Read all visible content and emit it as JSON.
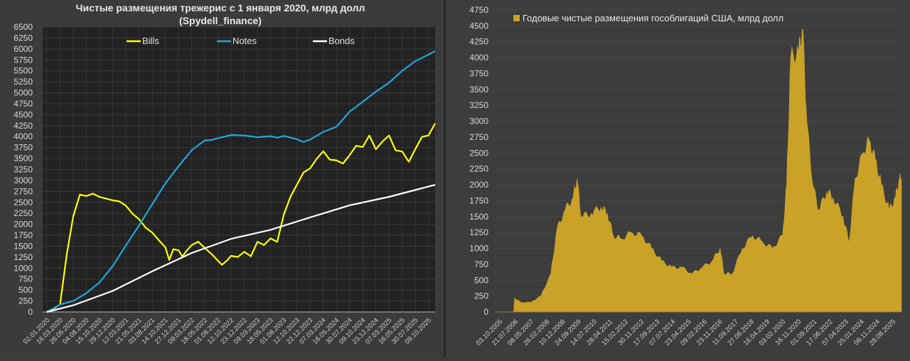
{
  "chart_data": [
    {
      "type": "line",
      "title": "Чистые размещения трежерис с 1 января 2020, млрд долл",
      "subtitle": "(Spydell_finance)",
      "xlabel": "",
      "ylabel": "",
      "ylim": [
        0,
        6500
      ],
      "yticks": [
        0,
        250,
        500,
        750,
        1000,
        1250,
        1500,
        1750,
        2000,
        2250,
        2500,
        2750,
        3000,
        3250,
        3500,
        3750,
        4000,
        4250,
        4500,
        4750,
        5000,
        5250,
        5500,
        5750,
        6000,
        6250,
        6500
      ],
      "categories": [
        "02.01.2020",
        "16.03.2020",
        "26.05.2020",
        "04.08.2020",
        "15.10.2020",
        "29.12.2020",
        "12.03.2021",
        "21.05.2021",
        "03.08.2021",
        "14.10.2021",
        "27.12.2021",
        "09.03.2022",
        "18.05.2022",
        "01.08.2022",
        "12.10.2022",
        "23.12.2022",
        "09.03.2023",
        "18.05.2023",
        "01.08.2023",
        "12.10.2023",
        "22.12.2023",
        "07.03.2024",
        "16.05.2024",
        "30.07.2024",
        "09.10.2024",
        "23.12.2024",
        "07.03.2025",
        "16.05.2025",
        "30.07.2025",
        "09.10.2025"
      ],
      "grid": true,
      "legend": "top",
      "series": [
        {
          "name": "Bills",
          "color": "#ffff00",
          "x": [
            0,
            0.5,
            1,
            1.5,
            2,
            2.5,
            3,
            3.5,
            4,
            5,
            5.5,
            6,
            6.5,
            7,
            7.5,
            8,
            8.5,
            9,
            9.3,
            9.6,
            10,
            10.3,
            10.6,
            11,
            11.5,
            12,
            12.5,
            13,
            13.3,
            13.7,
            14,
            14.5,
            15,
            15.5,
            16,
            16.5,
            17,
            17.5,
            18,
            18.5,
            19,
            19.5,
            20,
            20.5,
            21,
            21.5,
            22,
            22.5,
            23,
            23.5,
            24,
            24.5,
            25,
            25.5,
            26,
            26.5,
            27,
            27.5,
            28,
            28.5,
            29,
            29.5
          ],
          "values": [
            0,
            50,
            150,
            1300,
            2200,
            2700,
            2650,
            2680,
            2600,
            2540,
            2540,
            2450,
            2250,
            2100,
            1900,
            1800,
            1650,
            1500,
            1200,
            1420,
            1380,
            1250,
            1400,
            1550,
            1620,
            1450,
            1300,
            1150,
            1080,
            1200,
            1300,
            1250,
            1350,
            1250,
            1600,
            1550,
            1700,
            1600,
            2200,
            2600,
            2900,
            3200,
            3300,
            3500,
            3650,
            3450,
            3450,
            3400,
            3600,
            3800,
            3750,
            4000,
            3700,
            3900,
            4050,
            3700,
            3650,
            3400,
            3700,
            4000,
            4050,
            4300
          ]
        },
        {
          "name": "Notes",
          "color": "#1fa8e0",
          "x": [
            0,
            1,
            2,
            3,
            4,
            5,
            6,
            7,
            8,
            9,
            10,
            11,
            12,
            12.5,
            13,
            14,
            15,
            16,
            17,
            17.5,
            18,
            19,
            19.5,
            20,
            21,
            22,
            23,
            24,
            25,
            26,
            27,
            28,
            29,
            29.5
          ],
          "values": [
            0,
            150,
            250,
            450,
            700,
            1050,
            1500,
            1950,
            2450,
            2950,
            3350,
            3700,
            3900,
            3900,
            3950,
            4050,
            4050,
            4000,
            4000,
            3950,
            4000,
            3950,
            3900,
            3950,
            4100,
            4200,
            4550,
            4800,
            5050,
            5250,
            5500,
            5700,
            5850,
            5950
          ]
        },
        {
          "name": "Bonds",
          "color": "#ffffff",
          "x": [
            0,
            2,
            5,
            8,
            11,
            14,
            17,
            20,
            23,
            26,
            29.5
          ],
          "values": [
            0,
            150,
            500,
            950,
            1350,
            1650,
            1850,
            2150,
            2450,
            2650,
            2900
          ]
        }
      ]
    },
    {
      "type": "area",
      "title": "",
      "legend_label": "Годовые чистые размещения гособлигаций США, млрд долл",
      "color": "#c9a227",
      "ylim": [
        0,
        4750
      ],
      "yticks": [
        0,
        250,
        500,
        750,
        1000,
        1250,
        1500,
        1750,
        2000,
        2250,
        2500,
        2750,
        3000,
        3250,
        3500,
        3750,
        4000,
        4250,
        4500,
        4750
      ],
      "xrange": [
        2005.75,
        2025.9
      ],
      "xtick_labels": [
        "03.10.2005",
        "21.07.2006",
        "08.05.2007",
        "26.02.2008",
        "10.12.2008",
        "24.09.2009",
        "14.07.2010",
        "28.04.2011",
        "15.02.2012",
        "30.11.2012",
        "17.09.2013",
        "07.07.2014",
        "23.04.2015",
        "09.02.2016",
        "23.11.2016",
        "11.09.2017",
        "27.06.2018",
        "16.04.2019",
        "03.02.2020",
        "16.11.2020",
        "01.09.2021",
        "17.06.2022",
        "07.04.2023",
        "25.01.2024",
        "08.11.2024",
        "28.08.2025"
      ],
      "x": [
        2006.65,
        2006.7,
        2007,
        2007.5,
        2008,
        2008.5,
        2008.8,
        2009.2,
        2009.6,
        2009.8,
        2010,
        2010.5,
        2011,
        2011.3,
        2011.6,
        2012,
        2012.5,
        2013,
        2013.5,
        2014,
        2014.5,
        2015,
        2015.5,
        2016,
        2016.5,
        2016.9,
        2017.1,
        2017.5,
        2018,
        2018.5,
        2019,
        2019.5,
        2020,
        2020.2,
        2020.4,
        2020.8,
        2021,
        2021.2,
        2021.5,
        2021.8,
        2022.2,
        2022.5,
        2023,
        2023.3,
        2023.6,
        2024,
        2024.3,
        2024.6,
        2024.9,
        2025.3,
        2025.6,
        2025.8,
        2025.9
      ],
      "values": [
        0,
        220,
        150,
        150,
        250,
        600,
        1300,
        1600,
        1800,
        2100,
        1500,
        1550,
        1650,
        1550,
        1200,
        1150,
        1250,
        1200,
        1000,
        800,
        700,
        700,
        600,
        700,
        800,
        1000,
        600,
        600,
        1000,
        1200,
        1100,
        1000,
        1200,
        2000,
        4000,
        4100,
        4450,
        3000,
        2000,
        1600,
        1900,
        1800,
        1500,
        1100,
        2100,
        2500,
        2700,
        2400,
        2000,
        1600,
        1800,
        2100,
        2100
      ]
    }
  ]
}
